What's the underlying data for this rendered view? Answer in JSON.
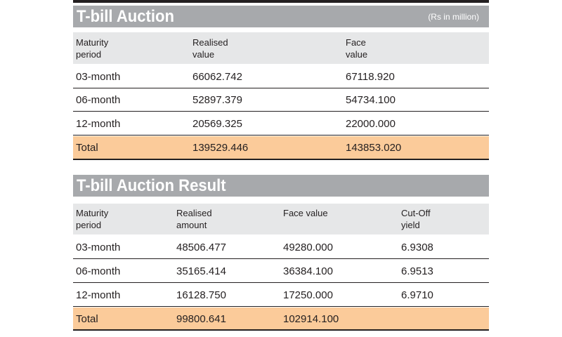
{
  "auction": {
    "title": "T-bill Auction",
    "unit": "(Rs in million)",
    "headers": {
      "maturity": [
        "Maturity",
        "period"
      ],
      "realised": [
        "Realised",
        "value"
      ],
      "face": [
        "Face",
        "value"
      ]
    },
    "rows": [
      {
        "maturity": "03-month",
        "realised": "66062.742",
        "face": "67118.920"
      },
      {
        "maturity": "06-month",
        "realised": "52897.379",
        "face": "54734.100"
      },
      {
        "maturity": "12-month",
        "realised": "20569.325",
        "face": "22000.000"
      }
    ],
    "total": {
      "label": "Total",
      "realised": "139529.446",
      "face": "143853.020"
    }
  },
  "result": {
    "title": "T-bill Auction Result",
    "headers": {
      "maturity": [
        "Maturity",
        "period"
      ],
      "realised": [
        "Realised",
        "amount"
      ],
      "face": [
        "Face value"
      ],
      "yield": [
        "Cut-Off",
        "yield"
      ]
    },
    "rows": [
      {
        "maturity": "03-month",
        "realised": "48506.477",
        "face": "49280.000",
        "yield": "6.9308"
      },
      {
        "maturity": "06-month",
        "realised": "35165.414",
        "face": "36384.100",
        "yield": "6.9513"
      },
      {
        "maturity": "12-month",
        "realised": "16128.750",
        "face": "17250.000",
        "yield": "6.9710"
      }
    ],
    "total": {
      "label": "Total",
      "realised": "99800.641",
      "face": "102914.100",
      "yield": ""
    }
  },
  "colors": {
    "title_bar": "#a7a9ac",
    "header_row": "#e6e7e8",
    "total_row": "#fbcb9a",
    "rule": "#231f20"
  }
}
